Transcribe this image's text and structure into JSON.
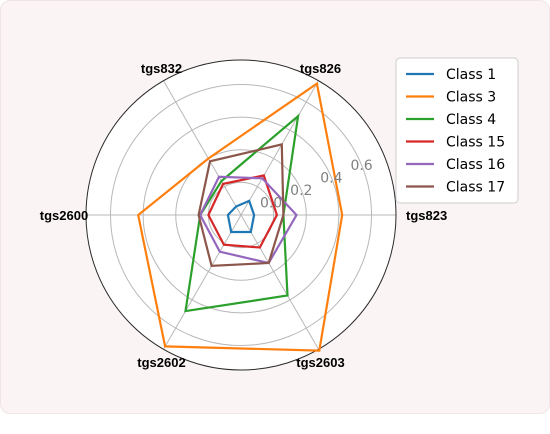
{
  "chart_data": {
    "type": "radar",
    "categories": [
      "tgs823",
      "tgs826",
      "tgs832",
      "tgs2600",
      "tgs2602",
      "tgs2603"
    ],
    "r_ticks": [
      "0.0",
      "0.2",
      "0.4",
      "0.6"
    ],
    "r_tick_values": [
      0.0,
      0.2,
      0.4,
      0.6
    ],
    "rlim": [
      -0.2,
      0.75
    ],
    "grid": true,
    "legend_position": "top-right",
    "series": [
      {
        "name": "Class 1",
        "color": "#1f77b4",
        "values": [
          -0.12,
          -0.1,
          -0.14,
          -0.12,
          -0.08,
          -0.08
        ]
      },
      {
        "name": "Class 3",
        "color": "#ff7f0e",
        "values": [
          0.42,
          0.73,
          0.2,
          0.43,
          0.73,
          0.76
        ]
      },
      {
        "name": "Class 4",
        "color": "#2ca02c",
        "values": [
          0.06,
          0.5,
          0.04,
          0.05,
          0.48,
          0.37
        ]
      },
      {
        "name": "Class 15",
        "color": "#d62728",
        "values": [
          0.02,
          0.08,
          0.02,
          0.0,
          0.01,
          0.03
        ]
      },
      {
        "name": "Class 16",
        "color": "#9467bd",
        "values": [
          0.14,
          0.06,
          0.07,
          0.05,
          0.06,
          0.14
        ]
      },
      {
        "name": "Class 17",
        "color": "#8c564b",
        "values": [
          0.06,
          0.3,
          0.18,
          0.06,
          0.16,
          0.14
        ]
      }
    ]
  }
}
